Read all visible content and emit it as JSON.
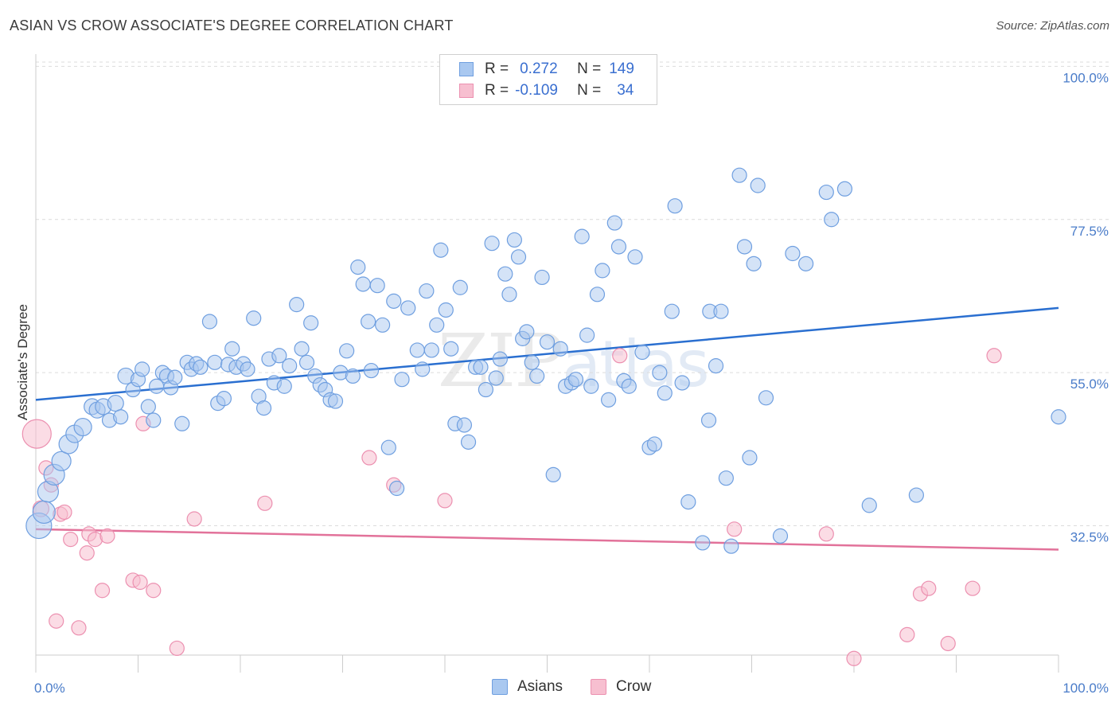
{
  "title": "ASIAN VS CROW ASSOCIATE'S DEGREE CORRELATION CHART",
  "source": "Source: ZipAtlas.com",
  "watermark": {
    "zip": "ZIP",
    "atlas": "atlas"
  },
  "legend": {
    "rows": [
      {
        "r_label": "R =",
        "r_value": "0.272",
        "n_label": "N =",
        "n_value": "149"
      },
      {
        "r_label": "R =",
        "r_value": "-0.109",
        "n_label": "N =",
        "n_value": "34"
      }
    ]
  },
  "colors": {
    "asian_fill": "#a9c8f0",
    "asian_stroke": "#6f9fe0",
    "asian_line": "#2a6fd0",
    "crow_fill": "#f7bfd0",
    "crow_stroke": "#ec90b0",
    "crow_line": "#e2729a",
    "grid": "#dcdcdc",
    "axis_text": "#4a7cc9"
  },
  "chart_data": {
    "type": "scatter",
    "title": "ASIAN VS CROW ASSOCIATE'S DEGREE CORRELATION CHART",
    "xlabel": "",
    "ylabel": "Associate's Degree",
    "xlim": [
      0,
      100
    ],
    "ylim": [
      13.5,
      102.5
    ],
    "x_tick_labels": [
      "0.0%",
      "100.0%"
    ],
    "y_ticks": [
      32.5,
      55.0,
      77.5,
      100.0
    ],
    "y_tick_labels": [
      "32.5%",
      "55.0%",
      "77.5%",
      "100.0%"
    ],
    "grid": true,
    "legend_position": "top-center",
    "series": [
      {
        "name": "Asians",
        "r": 0.272,
        "n": 149,
        "trend": {
          "x": [
            0,
            100
          ],
          "y": [
            51.0,
            64.5
          ]
        },
        "points": [
          [
            0.3,
            32.5,
            16
          ],
          [
            0.8,
            34.5,
            14
          ],
          [
            1.2,
            37.5,
            13
          ],
          [
            1.8,
            40.0,
            13
          ],
          [
            2.5,
            42.0,
            12
          ],
          [
            3.2,
            44.5,
            12
          ],
          [
            3.8,
            46.0,
            11
          ],
          [
            4.6,
            47.0,
            11
          ],
          [
            5.5,
            50.0,
            10
          ],
          [
            6.0,
            49.5,
            10
          ],
          [
            6.6,
            50.0,
            10
          ],
          [
            7.2,
            48.0,
            9
          ],
          [
            7.8,
            50.5,
            10
          ],
          [
            8.3,
            48.5,
            9
          ],
          [
            8.8,
            54.5,
            10
          ],
          [
            9.5,
            52.5,
            9
          ],
          [
            10.0,
            54.0,
            9
          ],
          [
            10.4,
            55.5,
            9
          ],
          [
            11.0,
            50.0,
            9
          ],
          [
            11.8,
            53.0,
            9
          ],
          [
            11.5,
            48.0,
            9
          ],
          [
            12.4,
            55.0,
            9
          ],
          [
            12.8,
            54.5,
            9
          ],
          [
            13.2,
            52.8,
            9
          ],
          [
            13.6,
            54.3,
            9
          ],
          [
            14.3,
            47.5,
            9
          ],
          [
            14.8,
            56.5,
            9
          ],
          [
            15.2,
            55.5,
            9
          ],
          [
            15.7,
            56.3,
            9
          ],
          [
            16.1,
            55.8,
            9
          ],
          [
            17.0,
            62.5,
            9
          ],
          [
            17.5,
            56.5,
            9
          ],
          [
            17.8,
            50.5,
            9
          ],
          [
            18.4,
            51.2,
            9
          ],
          [
            18.8,
            56.2,
            9
          ],
          [
            19.2,
            58.5,
            9
          ],
          [
            19.6,
            55.8,
            9
          ],
          [
            20.3,
            56.3,
            9
          ],
          [
            20.7,
            55.5,
            9
          ],
          [
            21.3,
            63.0,
            9
          ],
          [
            21.8,
            51.5,
            9
          ],
          [
            22.3,
            49.8,
            9
          ],
          [
            22.8,
            57.0,
            9
          ],
          [
            23.3,
            53.5,
            9
          ],
          [
            23.8,
            57.5,
            9
          ],
          [
            24.3,
            53.0,
            9
          ],
          [
            24.8,
            56.0,
            9
          ],
          [
            25.5,
            65.0,
            9
          ],
          [
            26.0,
            58.5,
            9
          ],
          [
            26.5,
            56.5,
            9
          ],
          [
            26.9,
            62.3,
            9
          ],
          [
            27.3,
            54.5,
            9
          ],
          [
            27.8,
            53.2,
            9
          ],
          [
            28.3,
            52.5,
            9
          ],
          [
            28.8,
            51.0,
            9
          ],
          [
            29.3,
            50.8,
            9
          ],
          [
            29.8,
            55.0,
            9
          ],
          [
            30.4,
            58.2,
            9
          ],
          [
            31.0,
            54.5,
            9
          ],
          [
            31.5,
            70.5,
            9
          ],
          [
            32.0,
            68.0,
            9
          ],
          [
            32.5,
            62.5,
            9
          ],
          [
            32.8,
            55.3,
            9
          ],
          [
            33.4,
            67.8,
            9
          ],
          [
            33.9,
            62.0,
            9
          ],
          [
            34.5,
            44.0,
            9
          ],
          [
            35.0,
            65.5,
            9
          ],
          [
            35.3,
            38.0,
            9
          ],
          [
            35.8,
            54.0,
            9
          ],
          [
            36.4,
            64.5,
            9
          ],
          [
            37.3,
            58.3,
            9
          ],
          [
            37.8,
            55.5,
            9
          ],
          [
            38.2,
            67.0,
            9
          ],
          [
            38.7,
            58.3,
            9
          ],
          [
            39.2,
            62.0,
            9
          ],
          [
            39.6,
            73.0,
            9
          ],
          [
            40.1,
            64.2,
            9
          ],
          [
            40.6,
            58.5,
            9
          ],
          [
            41.0,
            47.5,
            9
          ],
          [
            41.5,
            67.5,
            9
          ],
          [
            41.9,
            47.3,
            9
          ],
          [
            42.3,
            44.8,
            9
          ],
          [
            43.0,
            55.8,
            9
          ],
          [
            43.5,
            55.8,
            9
          ],
          [
            44.0,
            52.5,
            9
          ],
          [
            44.6,
            74.0,
            9
          ],
          [
            45.0,
            54.2,
            9
          ],
          [
            45.4,
            57.0,
            9
          ],
          [
            45.9,
            69.5,
            9
          ],
          [
            46.3,
            66.5,
            9
          ],
          [
            46.8,
            74.5,
            9
          ],
          [
            47.2,
            72.0,
            9
          ],
          [
            47.6,
            60.0,
            9
          ],
          [
            48.0,
            61.0,
            9
          ],
          [
            48.5,
            56.5,
            9
          ],
          [
            49.0,
            54.5,
            9
          ],
          [
            49.5,
            69.0,
            9
          ],
          [
            50.0,
            59.5,
            9
          ],
          [
            50.6,
            40.0,
            9
          ],
          [
            51.3,
            58.5,
            9
          ],
          [
            51.8,
            53.0,
            9
          ],
          [
            52.4,
            53.5,
            9
          ],
          [
            52.8,
            54.0,
            9
          ],
          [
            53.4,
            75.0,
            9
          ],
          [
            53.9,
            60.5,
            9
          ],
          [
            54.3,
            53.0,
            9
          ],
          [
            54.9,
            66.5,
            9
          ],
          [
            55.4,
            70.0,
            9
          ],
          [
            56.0,
            51.0,
            9
          ],
          [
            56.6,
            77.0,
            9
          ],
          [
            57.0,
            73.5,
            9
          ],
          [
            57.5,
            53.8,
            9
          ],
          [
            58.0,
            53.0,
            9
          ],
          [
            58.6,
            72.0,
            9
          ],
          [
            59.3,
            58.0,
            9
          ],
          [
            60.0,
            44.0,
            9
          ],
          [
            60.5,
            44.5,
            9
          ],
          [
            61.0,
            55.0,
            9
          ],
          [
            61.5,
            52.0,
            9
          ],
          [
            62.2,
            64.0,
            9
          ],
          [
            62.5,
            79.5,
            9
          ],
          [
            63.2,
            53.5,
            9
          ],
          [
            63.8,
            36.0,
            9
          ],
          [
            65.2,
            30.0,
            9
          ],
          [
            65.8,
            48.0,
            9
          ],
          [
            65.9,
            64.0,
            9
          ],
          [
            66.5,
            56.0,
            9
          ],
          [
            67.0,
            64.0,
            9
          ],
          [
            67.5,
            39.5,
            9
          ],
          [
            68.0,
            29.5,
            9
          ],
          [
            68.8,
            84.0,
            9
          ],
          [
            69.3,
            73.5,
            9
          ],
          [
            69.8,
            42.5,
            9
          ],
          [
            70.2,
            71.0,
            9
          ],
          [
            70.6,
            82.5,
            9
          ],
          [
            71.4,
            51.3,
            9
          ],
          [
            72.8,
            31.0,
            9
          ],
          [
            74.0,
            72.5,
            9
          ],
          [
            75.3,
            71.0,
            9
          ],
          [
            77.3,
            81.5,
            9
          ],
          [
            77.8,
            77.5,
            9
          ],
          [
            79.1,
            82.0,
            9
          ],
          [
            81.5,
            35.5,
            9
          ],
          [
            86.1,
            37.0,
            9
          ],
          [
            100.0,
            48.5,
            9
          ]
        ]
      },
      {
        "name": "Crow",
        "r": -0.109,
        "n": 34,
        "trend": {
          "x": [
            0,
            100
          ],
          "y": [
            32.0,
            29.0
          ]
        },
        "points": [
          [
            0.1,
            46.0,
            18
          ],
          [
            0.5,
            35.0,
            10
          ],
          [
            1.0,
            41.0,
            9
          ],
          [
            1.5,
            38.5,
            9
          ],
          [
            2.0,
            18.5,
            9
          ],
          [
            2.4,
            34.2,
            9
          ],
          [
            2.8,
            34.5,
            9
          ],
          [
            3.4,
            30.5,
            9
          ],
          [
            4.2,
            17.5,
            9
          ],
          [
            5.0,
            28.5,
            9
          ],
          [
            5.2,
            31.3,
            9
          ],
          [
            5.8,
            30.5,
            9
          ],
          [
            6.5,
            23.0,
            9
          ],
          [
            7.0,
            31.0,
            9
          ],
          [
            9.5,
            24.5,
            9
          ],
          [
            10.2,
            24.2,
            9
          ],
          [
            10.5,
            47.5,
            9
          ],
          [
            11.5,
            23.0,
            9
          ],
          [
            13.8,
            14.5,
            9
          ],
          [
            15.5,
            33.5,
            9
          ],
          [
            22.4,
            35.8,
            9
          ],
          [
            32.6,
            42.5,
            9
          ],
          [
            35.0,
            38.5,
            9
          ],
          [
            40.0,
            36.2,
            9
          ],
          [
            57.1,
            57.5,
            9
          ],
          [
            68.3,
            32.0,
            9
          ],
          [
            77.3,
            31.3,
            9
          ],
          [
            80.0,
            13.0,
            9
          ],
          [
            85.2,
            16.5,
            9
          ],
          [
            86.5,
            22.5,
            9
          ],
          [
            87.3,
            23.3,
            9
          ],
          [
            89.2,
            15.2,
            9
          ],
          [
            91.6,
            23.3,
            9
          ],
          [
            93.7,
            57.5,
            9
          ]
        ]
      }
    ]
  }
}
